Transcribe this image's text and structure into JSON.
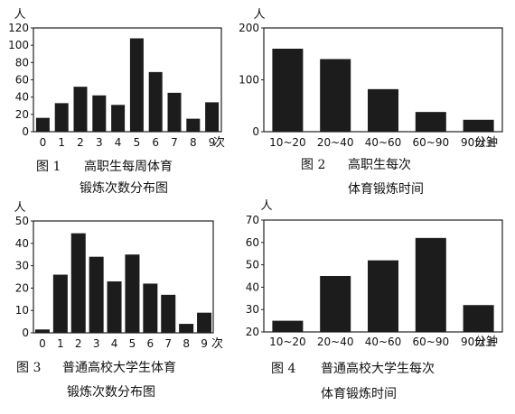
{
  "chart_data": [
    {
      "type": "bar",
      "unit_label": "人",
      "categories": [
        "0",
        "1",
        "2",
        "3",
        "4",
        "5",
        "6",
        "7",
        "8",
        "9"
      ],
      "x_suffix": "次",
      "values": [
        16,
        33,
        52,
        42,
        31,
        108,
        69,
        45,
        15,
        34
      ],
      "ylim": [
        0,
        120
      ],
      "yticks": [
        0,
        20,
        40,
        60,
        80,
        100,
        120
      ],
      "caption_label": "图 1",
      "caption_lines": [
        "高职生每周体育",
        "锻炼次数分布图"
      ]
    },
    {
      "type": "bar",
      "unit_label": "人",
      "categories": [
        "10~20",
        "20~40",
        "40~60",
        "60~90",
        "90以上"
      ],
      "x_suffix": "分钟",
      "values": [
        160,
        140,
        82,
        38,
        23
      ],
      "ylim": [
        0,
        200
      ],
      "yticks": [
        0,
        100,
        200
      ],
      "caption_label": "图 2",
      "caption_lines": [
        "高职生每次",
        "体育锻炼时间"
      ]
    },
    {
      "type": "bar",
      "unit_label": "人",
      "categories": [
        "0",
        "1",
        "2",
        "3",
        "4",
        "5",
        "6",
        "7",
        "8",
        "9"
      ],
      "x_suffix": "次",
      "values": [
        1.5,
        26,
        44.5,
        34,
        23,
        35,
        22,
        17,
        4,
        9
      ],
      "ylim": [
        0,
        50
      ],
      "yticks": [
        0,
        10,
        20,
        30,
        40,
        50
      ],
      "caption_label": "图 3",
      "caption_lines": [
        "普通高校大学生体育",
        "锻炼次数分布图"
      ]
    },
    {
      "type": "bar",
      "unit_label": "人",
      "categories": [
        "10~20",
        "20~40",
        "40~60",
        "60~90",
        "90以上"
      ],
      "x_suffix": "分钟",
      "values": [
        25,
        45,
        52,
        62,
        32
      ],
      "ylim": [
        20,
        70
      ],
      "yticks": [
        20,
        30,
        40,
        50,
        60,
        70
      ],
      "caption_label": "图 4",
      "caption_lines": [
        "普通高校大学生每次",
        "体育锻炼时间"
      ]
    }
  ]
}
